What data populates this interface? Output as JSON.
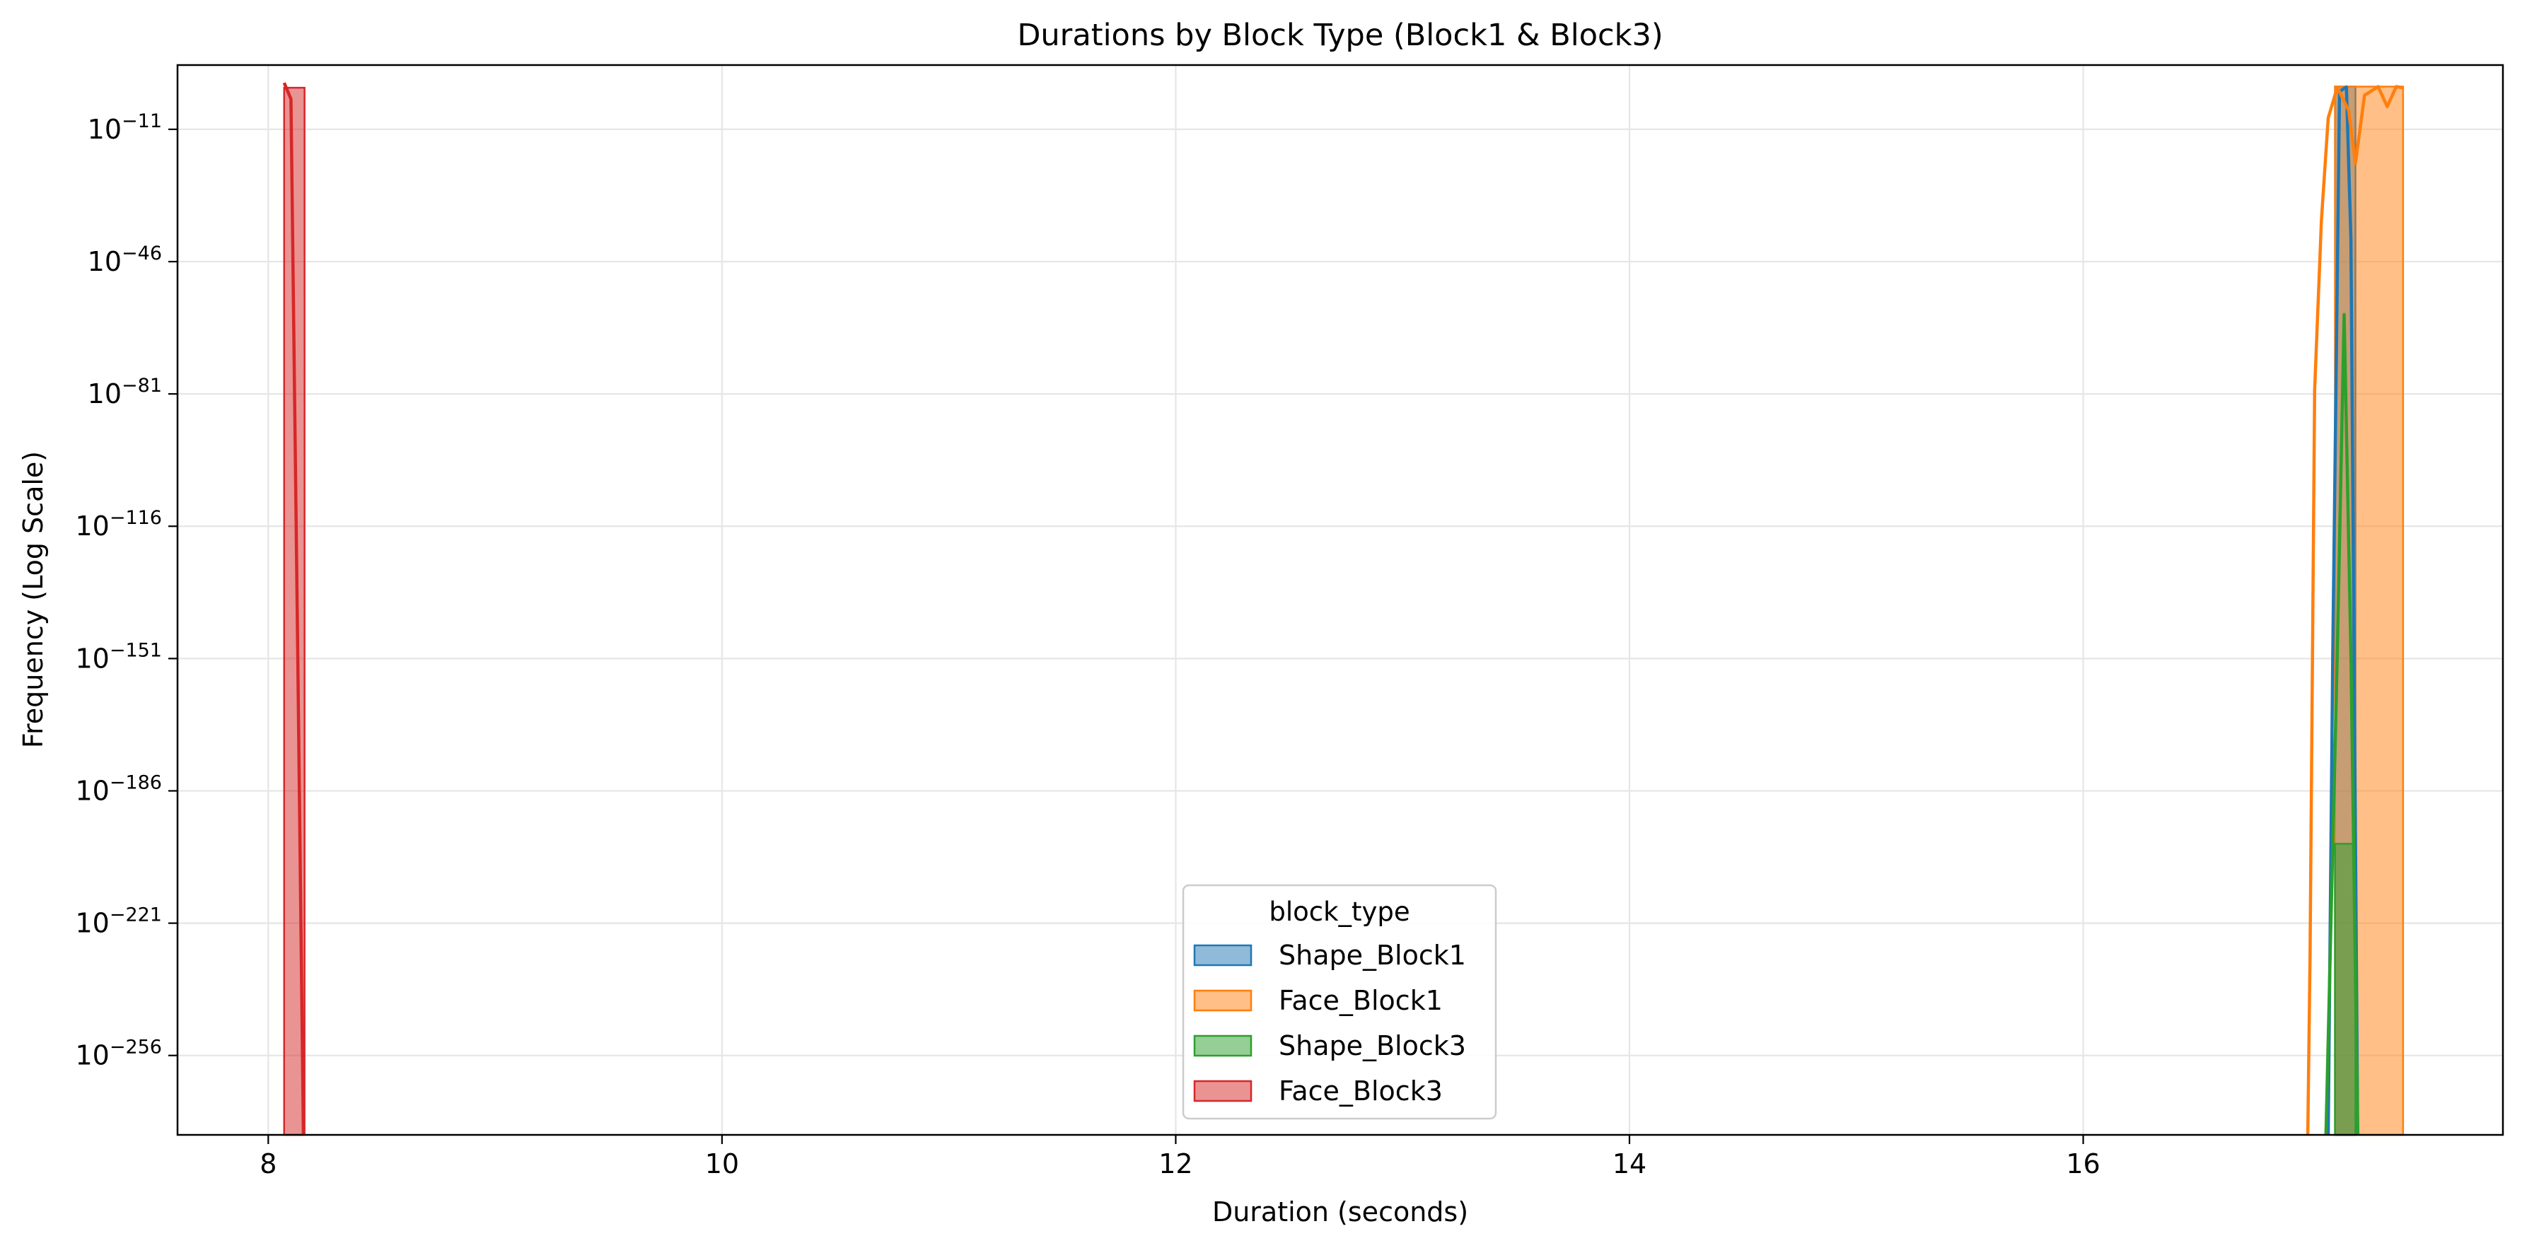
{
  "chart_data": {
    "type": "histogram",
    "title": "Durations by Block Type (Block1 & Block3)",
    "xlabel": "Duration (seconds)",
    "ylabel": "Frequency (Log Scale)",
    "yscale": "log",
    "grid": true,
    "xlim": [
      7.6,
      17.85
    ],
    "ylim_log10": [
      -277,
      6
    ],
    "x_ticks": [
      {
        "value": 8,
        "label": "8"
      },
      {
        "value": 10,
        "label": "10"
      },
      {
        "value": 12,
        "label": "12"
      },
      {
        "value": 14,
        "label": "14"
      },
      {
        "value": 16,
        "label": "16"
      }
    ],
    "y_ticks": [
      {
        "log10": -11,
        "base": "10",
        "exp": "−11"
      },
      {
        "log10": -46,
        "base": "10",
        "exp": "−46"
      },
      {
        "log10": -81,
        "base": "10",
        "exp": "−81"
      },
      {
        "log10": -116,
        "base": "10",
        "exp": "−116"
      },
      {
        "log10": -151,
        "base": "10",
        "exp": "−151"
      },
      {
        "log10": -186,
        "base": "10",
        "exp": "−186"
      },
      {
        "log10": -221,
        "base": "10",
        "exp": "−221"
      },
      {
        "log10": -256,
        "base": "10",
        "exp": "−256"
      }
    ],
    "legend": {
      "title": "block_type",
      "placement": "lower center"
    },
    "series": [
      {
        "name": "Shape_Block1",
        "color": "#1f77b4",
        "bins": [
          {
            "x0": 17.11,
            "x1": 17.2,
            "log10_count": 0.3
          }
        ],
        "kde": [
          [
            17.08,
            -277
          ],
          [
            17.1,
            -150
          ],
          [
            17.13,
            -1
          ],
          [
            17.16,
            0.2
          ],
          [
            17.18,
            -40
          ],
          [
            17.21,
            -277
          ]
        ]
      },
      {
        "name": "Face_Block1",
        "color": "#ff7f0e",
        "bins": [
          {
            "x0": 17.11,
            "x1": 17.41,
            "log10_count": 0.3
          }
        ],
        "kde": [
          [
            16.99,
            -277
          ],
          [
            17.0,
            -230
          ],
          [
            17.02,
            -80
          ],
          [
            17.05,
            -35
          ],
          [
            17.08,
            -8
          ],
          [
            17.12,
            0.1
          ],
          [
            17.17,
            -6
          ],
          [
            17.2,
            -20
          ],
          [
            17.24,
            -2
          ],
          [
            17.3,
            0.3
          ],
          [
            17.34,
            -5
          ],
          [
            17.38,
            0.3
          ],
          [
            17.41,
            0
          ]
        ]
      },
      {
        "name": "Shape_Block3",
        "color": "#2ca02c",
        "bins": [
          {
            "x0": 17.11,
            "x1": 17.2,
            "log10_count": -200
          }
        ],
        "kde": [
          [
            17.07,
            -277
          ],
          [
            17.12,
            -150
          ],
          [
            17.15,
            -60
          ],
          [
            17.18,
            -150
          ],
          [
            17.21,
            -277
          ]
        ]
      },
      {
        "name": "Face_Block3",
        "color": "#d62728",
        "bins": [
          {
            "x0": 8.07,
            "x1": 8.16,
            "log10_count": 0
          }
        ],
        "kde": [
          [
            8.07,
            1.3
          ],
          [
            8.1,
            -3
          ],
          [
            8.13,
            -150
          ],
          [
            8.155,
            -277
          ]
        ]
      }
    ]
  }
}
